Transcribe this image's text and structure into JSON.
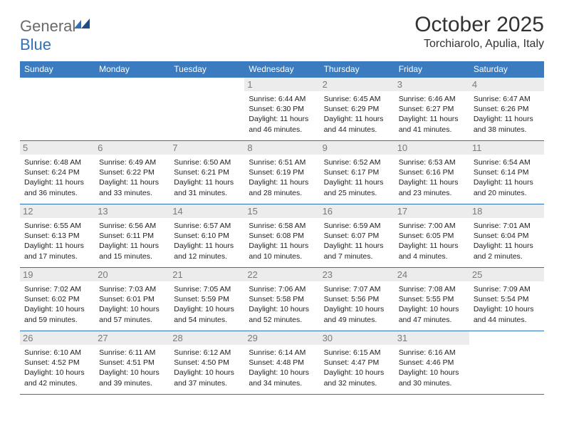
{
  "logo": {
    "gray": "General",
    "blue": "Blue"
  },
  "title": "October 2025",
  "location": "Torchiarolo, Apulia, Italy",
  "colors": {
    "header_bg": "#3b7bbf",
    "rule": "#2f71b8",
    "daynum_bg": "#ececec",
    "daynum_text": "#7a7a7a",
    "text": "#222222",
    "logo_gray": "#6a6a6a",
    "logo_blue": "#2f71b8"
  },
  "weekdays": [
    "Sunday",
    "Monday",
    "Tuesday",
    "Wednesday",
    "Thursday",
    "Friday",
    "Saturday"
  ],
  "weeks": [
    [
      {
        "day": "",
        "sunrise": "",
        "sunset": "",
        "daylight": ""
      },
      {
        "day": "",
        "sunrise": "",
        "sunset": "",
        "daylight": ""
      },
      {
        "day": "",
        "sunrise": "",
        "sunset": "",
        "daylight": ""
      },
      {
        "day": "1",
        "sunrise": "Sunrise: 6:44 AM",
        "sunset": "Sunset: 6:30 PM",
        "daylight": "Daylight: 11 hours and 46 minutes."
      },
      {
        "day": "2",
        "sunrise": "Sunrise: 6:45 AM",
        "sunset": "Sunset: 6:29 PM",
        "daylight": "Daylight: 11 hours and 44 minutes."
      },
      {
        "day": "3",
        "sunrise": "Sunrise: 6:46 AM",
        "sunset": "Sunset: 6:27 PM",
        "daylight": "Daylight: 11 hours and 41 minutes."
      },
      {
        "day": "4",
        "sunrise": "Sunrise: 6:47 AM",
        "sunset": "Sunset: 6:26 PM",
        "daylight": "Daylight: 11 hours and 38 minutes."
      }
    ],
    [
      {
        "day": "5",
        "sunrise": "Sunrise: 6:48 AM",
        "sunset": "Sunset: 6:24 PM",
        "daylight": "Daylight: 11 hours and 36 minutes."
      },
      {
        "day": "6",
        "sunrise": "Sunrise: 6:49 AM",
        "sunset": "Sunset: 6:22 PM",
        "daylight": "Daylight: 11 hours and 33 minutes."
      },
      {
        "day": "7",
        "sunrise": "Sunrise: 6:50 AM",
        "sunset": "Sunset: 6:21 PM",
        "daylight": "Daylight: 11 hours and 31 minutes."
      },
      {
        "day": "8",
        "sunrise": "Sunrise: 6:51 AM",
        "sunset": "Sunset: 6:19 PM",
        "daylight": "Daylight: 11 hours and 28 minutes."
      },
      {
        "day": "9",
        "sunrise": "Sunrise: 6:52 AM",
        "sunset": "Sunset: 6:17 PM",
        "daylight": "Daylight: 11 hours and 25 minutes."
      },
      {
        "day": "10",
        "sunrise": "Sunrise: 6:53 AM",
        "sunset": "Sunset: 6:16 PM",
        "daylight": "Daylight: 11 hours and 23 minutes."
      },
      {
        "day": "11",
        "sunrise": "Sunrise: 6:54 AM",
        "sunset": "Sunset: 6:14 PM",
        "daylight": "Daylight: 11 hours and 20 minutes."
      }
    ],
    [
      {
        "day": "12",
        "sunrise": "Sunrise: 6:55 AM",
        "sunset": "Sunset: 6:13 PM",
        "daylight": "Daylight: 11 hours and 17 minutes."
      },
      {
        "day": "13",
        "sunrise": "Sunrise: 6:56 AM",
        "sunset": "Sunset: 6:11 PM",
        "daylight": "Daylight: 11 hours and 15 minutes."
      },
      {
        "day": "14",
        "sunrise": "Sunrise: 6:57 AM",
        "sunset": "Sunset: 6:10 PM",
        "daylight": "Daylight: 11 hours and 12 minutes."
      },
      {
        "day": "15",
        "sunrise": "Sunrise: 6:58 AM",
        "sunset": "Sunset: 6:08 PM",
        "daylight": "Daylight: 11 hours and 10 minutes."
      },
      {
        "day": "16",
        "sunrise": "Sunrise: 6:59 AM",
        "sunset": "Sunset: 6:07 PM",
        "daylight": "Daylight: 11 hours and 7 minutes."
      },
      {
        "day": "17",
        "sunrise": "Sunrise: 7:00 AM",
        "sunset": "Sunset: 6:05 PM",
        "daylight": "Daylight: 11 hours and 4 minutes."
      },
      {
        "day": "18",
        "sunrise": "Sunrise: 7:01 AM",
        "sunset": "Sunset: 6:04 PM",
        "daylight": "Daylight: 11 hours and 2 minutes."
      }
    ],
    [
      {
        "day": "19",
        "sunrise": "Sunrise: 7:02 AM",
        "sunset": "Sunset: 6:02 PM",
        "daylight": "Daylight: 10 hours and 59 minutes."
      },
      {
        "day": "20",
        "sunrise": "Sunrise: 7:03 AM",
        "sunset": "Sunset: 6:01 PM",
        "daylight": "Daylight: 10 hours and 57 minutes."
      },
      {
        "day": "21",
        "sunrise": "Sunrise: 7:05 AM",
        "sunset": "Sunset: 5:59 PM",
        "daylight": "Daylight: 10 hours and 54 minutes."
      },
      {
        "day": "22",
        "sunrise": "Sunrise: 7:06 AM",
        "sunset": "Sunset: 5:58 PM",
        "daylight": "Daylight: 10 hours and 52 minutes."
      },
      {
        "day": "23",
        "sunrise": "Sunrise: 7:07 AM",
        "sunset": "Sunset: 5:56 PM",
        "daylight": "Daylight: 10 hours and 49 minutes."
      },
      {
        "day": "24",
        "sunrise": "Sunrise: 7:08 AM",
        "sunset": "Sunset: 5:55 PM",
        "daylight": "Daylight: 10 hours and 47 minutes."
      },
      {
        "day": "25",
        "sunrise": "Sunrise: 7:09 AM",
        "sunset": "Sunset: 5:54 PM",
        "daylight": "Daylight: 10 hours and 44 minutes."
      }
    ],
    [
      {
        "day": "26",
        "sunrise": "Sunrise: 6:10 AM",
        "sunset": "Sunset: 4:52 PM",
        "daylight": "Daylight: 10 hours and 42 minutes."
      },
      {
        "day": "27",
        "sunrise": "Sunrise: 6:11 AM",
        "sunset": "Sunset: 4:51 PM",
        "daylight": "Daylight: 10 hours and 39 minutes."
      },
      {
        "day": "28",
        "sunrise": "Sunrise: 6:12 AM",
        "sunset": "Sunset: 4:50 PM",
        "daylight": "Daylight: 10 hours and 37 minutes."
      },
      {
        "day": "29",
        "sunrise": "Sunrise: 6:14 AM",
        "sunset": "Sunset: 4:48 PM",
        "daylight": "Daylight: 10 hours and 34 minutes."
      },
      {
        "day": "30",
        "sunrise": "Sunrise: 6:15 AM",
        "sunset": "Sunset: 4:47 PM",
        "daylight": "Daylight: 10 hours and 32 minutes."
      },
      {
        "day": "31",
        "sunrise": "Sunrise: 6:16 AM",
        "sunset": "Sunset: 4:46 PM",
        "daylight": "Daylight: 10 hours and 30 minutes."
      },
      {
        "day": "",
        "sunrise": "",
        "sunset": "",
        "daylight": ""
      }
    ]
  ]
}
